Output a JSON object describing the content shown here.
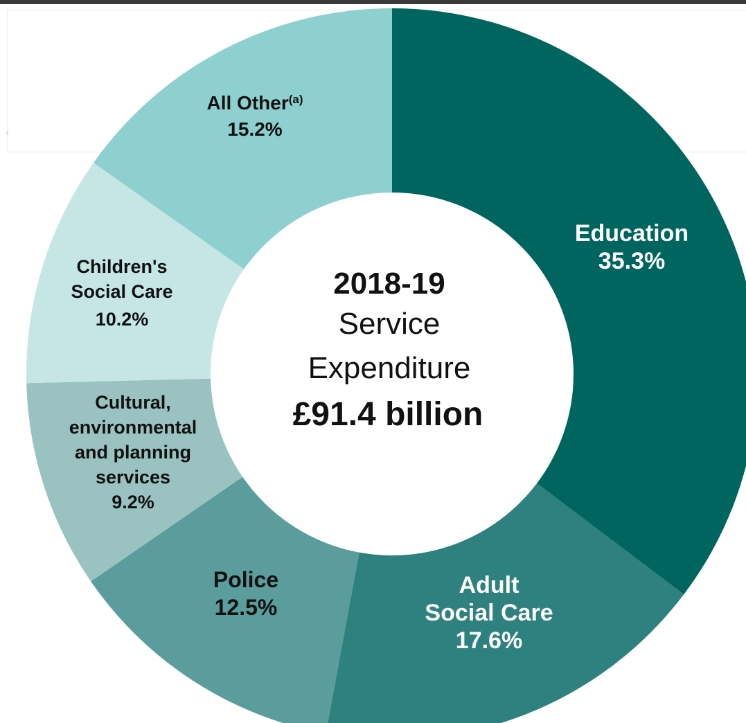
{
  "chart_data": {
    "type": "pie",
    "variant": "donut",
    "center": {
      "year": "2018-19",
      "line2": "Service",
      "line3": "Expenditure",
      "total": "£91.4 billion"
    },
    "slices": [
      {
        "name": "Education",
        "value": 35.3,
        "label_lines": [
          "Education",
          "35.3%"
        ],
        "color": "#00655f",
        "text_color": "#ffffff"
      },
      {
        "name": "Adult Social Care",
        "value": 17.6,
        "label_lines": [
          "Adult",
          "Social Care",
          "17.6%"
        ],
        "color": "#2e817e",
        "text_color": "#ffffff"
      },
      {
        "name": "Police",
        "value": 12.5,
        "label_lines": [
          "Police",
          "12.5%"
        ],
        "color": "#5a9d9c",
        "text_color": "#111111"
      },
      {
        "name": "Cultural, environmental and planning services",
        "value": 9.2,
        "label_lines": [
          "Cultural,",
          "environmental",
          "and planning",
          "services",
          "9.2%"
        ],
        "color": "#99c2c1",
        "text_color": "#111111"
      },
      {
        "name": "Children's Social Care",
        "value": 10.2,
        "label_lines": [
          "Children's",
          "Social Care",
          "10.2%"
        ],
        "color": "#c6e6e6",
        "text_color": "#111111"
      },
      {
        "name": "All Other",
        "value": 15.2,
        "label_lines": [
          "All Other",
          "15.2%"
        ],
        "superscript": "(a)",
        "color": "#8ecfcf",
        "text_color": "#111111"
      }
    ]
  },
  "ui": {
    "ghost_arrow": "‹"
  }
}
